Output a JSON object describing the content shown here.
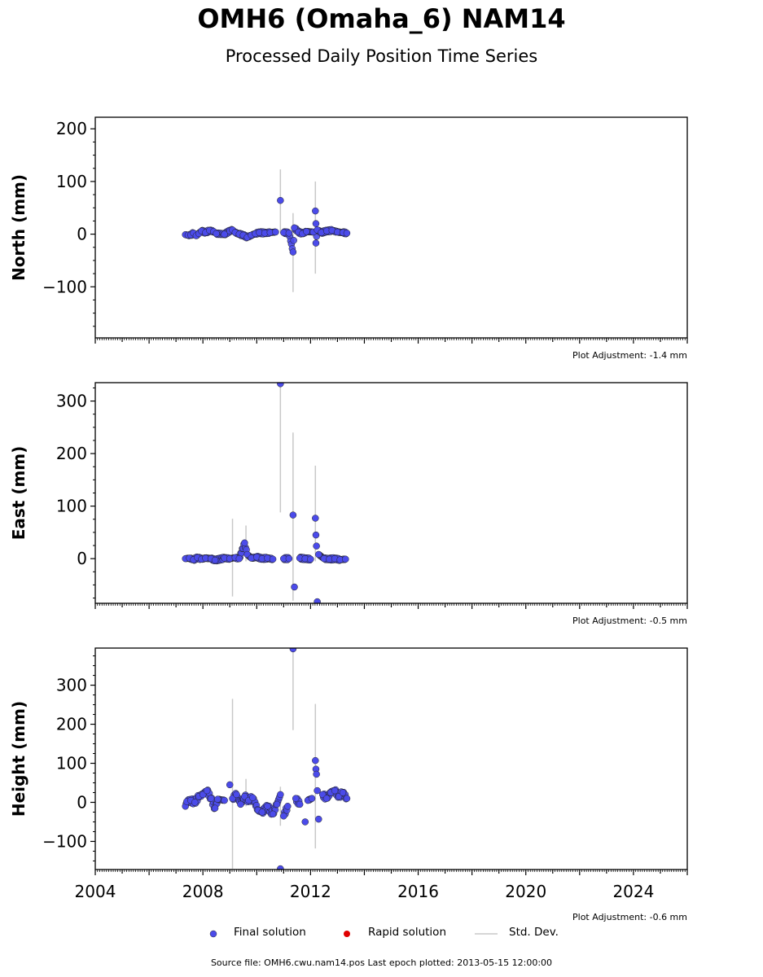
{
  "title": "OMH6 (Omaha_6) NAM14",
  "subtitle": "Processed Daily Position Time Series",
  "legend": {
    "final": "Final solution",
    "rapid": "Rapid solution",
    "std": "Std. Dev."
  },
  "source": "Source file: OMH6.cwu.nam14.pos  Last epoch plotted: 2013-05-15 12:00:00",
  "colors": {
    "final": "#4b4bea",
    "rapid": "#e00000",
    "std": "#c8c8c8"
  },
  "chart_data": [
    {
      "type": "scatter",
      "ylabel": "North (mm)",
      "ylim": [
        -197,
        222
      ],
      "yticks": [
        -100,
        0,
        100,
        200
      ],
      "xlim": [
        2004.0,
        2026.0
      ],
      "adjustment": "Plot Adjustment: -1.4 mm",
      "points": [
        [
          2007.35,
          -1.0
        ],
        [
          2007.45,
          -2.0
        ],
        [
          2007.55,
          -1.5
        ],
        [
          2007.65,
          2.0
        ],
        [
          2007.75,
          -3.0
        ],
        [
          2007.85,
          1.0
        ],
        [
          2007.95,
          6.0
        ],
        [
          2008.1,
          3.0
        ],
        [
          2008.25,
          7.0
        ],
        [
          2008.4,
          5.0
        ],
        [
          2008.5,
          1.0
        ],
        [
          2008.8,
          0.0
        ],
        [
          2009.0,
          6.0
        ],
        [
          2009.1,
          8.0
        ],
        [
          2009.2,
          3.0
        ],
        [
          2009.35,
          0.0
        ],
        [
          2009.5,
          -2.0
        ],
        [
          2009.65,
          -6.0
        ],
        [
          2009.8,
          -2.0
        ],
        [
          2009.95,
          1.0
        ],
        [
          2010.1,
          3.0
        ],
        [
          2010.3,
          2.0
        ],
        [
          2010.5,
          3.0
        ],
        [
          2010.7,
          4.0
        ],
        [
          2010.88,
          64.0
        ],
        [
          2011.0,
          3.0
        ],
        [
          2011.2,
          2.0
        ],
        [
          2011.35,
          -34.0
        ],
        [
          2011.4,
          12.0
        ],
        [
          2011.55,
          4.0
        ],
        [
          2011.7,
          1.0
        ],
        [
          2011.85,
          5.0
        ],
        [
          2012.1,
          4.0
        ],
        [
          2012.18,
          44.0
        ],
        [
          2012.2,
          20.0
        ],
        [
          2012.2,
          -17.0
        ],
        [
          2012.25,
          8.0
        ],
        [
          2012.4,
          3.0
        ],
        [
          2012.6,
          6.0
        ],
        [
          2012.8,
          7.0
        ],
        [
          2013.0,
          4.0
        ],
        [
          2013.2,
          3.0
        ],
        [
          2013.35,
          2.0
        ]
      ],
      "errorbars": [
        [
          2010.88,
          5,
          123
        ],
        [
          2011.35,
          -110,
          40
        ],
        [
          2012.18,
          -75,
          100
        ]
      ]
    },
    {
      "type": "scatter",
      "ylabel": "East (mm)",
      "ylim": [
        -85,
        335
      ],
      "yticks": [
        0,
        100,
        200,
        300
      ],
      "xlim": [
        2004.0,
        2026.0
      ],
      "adjustment": "Plot Adjustment: -0.5 mm",
      "points": [
        [
          2007.35,
          0.0
        ],
        [
          2007.5,
          1.0
        ],
        [
          2007.65,
          -2.0
        ],
        [
          2007.8,
          2.0
        ],
        [
          2007.95,
          -1.0
        ],
        [
          2008.1,
          1.0
        ],
        [
          2008.3,
          0.0
        ],
        [
          2008.45,
          -3.0
        ],
        [
          2008.8,
          1.0
        ],
        [
          2009.0,
          0.0
        ],
        [
          2009.2,
          2.0
        ],
        [
          2009.35,
          0.0
        ],
        [
          2009.55,
          30.0
        ],
        [
          2009.65,
          8.0
        ],
        [
          2009.8,
          1.0
        ],
        [
          2010.0,
          3.0
        ],
        [
          2010.2,
          0.0
        ],
        [
          2010.4,
          1.0
        ],
        [
          2010.6,
          -1.0
        ],
        [
          2010.88,
          333.0
        ],
        [
          2011.0,
          0.0
        ],
        [
          2011.2,
          0.0
        ],
        [
          2011.35,
          83.0
        ],
        [
          2011.4,
          -54.0
        ],
        [
          2011.6,
          1.0
        ],
        [
          2011.8,
          0.0
        ],
        [
          2012.0,
          -1.0
        ],
        [
          2012.18,
          77.0
        ],
        [
          2012.2,
          45.0
        ],
        [
          2012.22,
          24.0
        ],
        [
          2012.25,
          -82.0
        ],
        [
          2012.3,
          8.0
        ],
        [
          2012.5,
          0.0
        ],
        [
          2012.7,
          -1.0
        ],
        [
          2012.9,
          0.0
        ],
        [
          2013.1,
          -2.0
        ],
        [
          2013.3,
          -1.0
        ]
      ],
      "errorbars": [
        [
          2009.1,
          -72,
          76
        ],
        [
          2009.6,
          -5,
          63
        ],
        [
          2010.88,
          88,
          335
        ],
        [
          2011.35,
          -80,
          240
        ],
        [
          2012.18,
          -5,
          177
        ]
      ]
    },
    {
      "type": "scatter",
      "ylabel": "Height (mm)",
      "ylim": [
        -172,
        395
      ],
      "yticks": [
        -100,
        0,
        100,
        200,
        300
      ],
      "xlim": [
        2004.0,
        2026.0
      ],
      "xticks": [
        2004,
        2008,
        2012,
        2016,
        2020,
        2024
      ],
      "adjustment": "Plot Adjustment: -0.6 mm",
      "points": [
        [
          2007.35,
          -10.0
        ],
        [
          2007.4,
          2.0
        ],
        [
          2007.55,
          5.0
        ],
        [
          2007.7,
          0.0
        ],
        [
          2007.85,
          15.0
        ],
        [
          2008.0,
          20.0
        ],
        [
          2008.15,
          30.0
        ],
        [
          2008.3,
          10.0
        ],
        [
          2008.45,
          -15.0
        ],
        [
          2008.55,
          8.0
        ],
        [
          2008.8,
          5.0
        ],
        [
          2009.0,
          45.0
        ],
        [
          2009.1,
          10.0
        ],
        [
          2009.25,
          20.0
        ],
        [
          2009.4,
          -5.0
        ],
        [
          2009.55,
          15.0
        ],
        [
          2009.7,
          5.0
        ],
        [
          2009.85,
          12.0
        ],
        [
          2010.05,
          -20.0
        ],
        [
          2010.2,
          -25.0
        ],
        [
          2010.4,
          -10.0
        ],
        [
          2010.6,
          -30.0
        ],
        [
          2010.75,
          -5.0
        ],
        [
          2010.88,
          20.0
        ],
        [
          2010.88,
          -170.0
        ],
        [
          2011.0,
          -35.0
        ],
        [
          2011.15,
          -10.0
        ],
        [
          2011.35,
          393.0
        ],
        [
          2011.45,
          10.0
        ],
        [
          2011.6,
          -5.0
        ],
        [
          2011.8,
          -50.0
        ],
        [
          2011.9,
          5.0
        ],
        [
          2012.05,
          10.0
        ],
        [
          2012.18,
          107.0
        ],
        [
          2012.2,
          85.0
        ],
        [
          2012.22,
          72.0
        ],
        [
          2012.25,
          30.0
        ],
        [
          2012.3,
          -43.0
        ],
        [
          2012.45,
          20.0
        ],
        [
          2012.6,
          10.0
        ],
        [
          2012.75,
          25.0
        ],
        [
          2012.9,
          30.0
        ],
        [
          2013.05,
          15.0
        ],
        [
          2013.2,
          25.0
        ],
        [
          2013.35,
          10.0
        ]
      ],
      "errorbars": [
        [
          2009.1,
          -170,
          265
        ],
        [
          2009.6,
          -10,
          60
        ],
        [
          2010.88,
          -60,
          40
        ],
        [
          2011.35,
          185,
          395
        ],
        [
          2012.18,
          -118,
          252
        ]
      ]
    }
  ]
}
